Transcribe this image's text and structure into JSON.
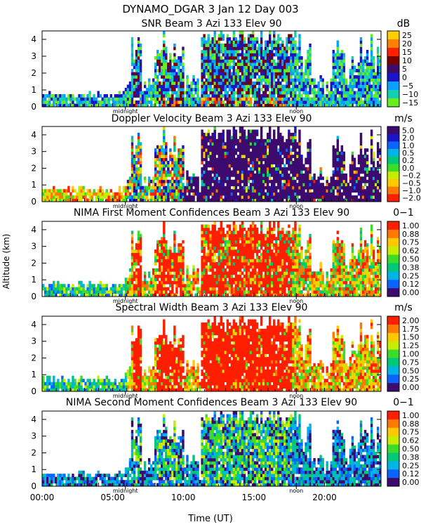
{
  "header": {
    "title": "DYNAMO_DGAR    3 Jan 12 Day 003"
  },
  "x_axis": {
    "label": "Time (UT)",
    "ticks": [
      {
        "hour": 0,
        "label": "00:00"
      },
      {
        "hour": 5,
        "label": "05:00"
      },
      {
        "hour": 10,
        "label": "10:00"
      },
      {
        "hour": 15,
        "label": "15:00"
      },
      {
        "hour": 20,
        "label": "20:00"
      }
    ],
    "range": [
      0,
      24
    ],
    "markers": [
      {
        "hour": 5.9,
        "label": "midnight"
      },
      {
        "hour": 18.0,
        "label": "noon"
      }
    ]
  },
  "y_axis": {
    "label": "Altitude (km)",
    "range": [
      0,
      4.5
    ],
    "ticks": [
      0,
      1,
      2,
      3,
      4
    ]
  },
  "chart_data": [
    {
      "type": "heatmap",
      "title": "SNR Beam 3 Azi 133 Elev 90",
      "unit": "dB",
      "colorbar": {
        "labels": [
          "25",
          "20",
          "15",
          "10",
          "5",
          "0",
          "−5",
          "−10",
          "−15"
        ],
        "colors": [
          "#ffd000",
          "#ff8000",
          "#ff2000",
          "#7a0000",
          "#3d0a6e",
          "#1a14c8",
          "#0aa0ff",
          "#12d0b0",
          "#66ee22"
        ]
      }
    },
    {
      "type": "heatmap",
      "title": "Doppler Velocity Beam 3 Azi 133 Elev 90",
      "unit": "m/s",
      "colorbar": {
        "labels": [
          "5.0",
          "2.0",
          "1.0",
          "0.5",
          "0.2",
          "0.0",
          "−0.2",
          "−0.5",
          "−1.0",
          "−2.0"
        ],
        "colors": [
          "#3d0a6e",
          "#1a14c8",
          "#0a64ff",
          "#00b4e6",
          "#00c878",
          "#3cdc28",
          "#c8ec00",
          "#ffc800",
          "#ff7800",
          "#ff1e00"
        ]
      }
    },
    {
      "type": "heatmap",
      "title": "NIMA First Moment Confidences Beam 3 Azi 133 Elev 90",
      "unit": "0−1",
      "colorbar": {
        "labels": [
          "1.00",
          "0.88",
          "0.75",
          "0.62",
          "0.50",
          "0.38",
          "0.25",
          "0.12",
          "0.00"
        ],
        "colors": [
          "#ff1e00",
          "#ff7800",
          "#ffc800",
          "#c8ec00",
          "#3cdc28",
          "#00c878",
          "#00b4e6",
          "#0a64ff",
          "#3d0a6e"
        ]
      }
    },
    {
      "type": "heatmap",
      "title": "Spectral Width Beam 3 Azi 133 Elev 90",
      "unit": "m/s",
      "colorbar": {
        "labels": [
          "2.00",
          "1.75",
          "1.50",
          "1.25",
          "1.00",
          "0.75",
          "0.50",
          "0.25",
          "0.00"
        ],
        "colors": [
          "#ff1e00",
          "#ff7800",
          "#ffc800",
          "#c8ec00",
          "#3cdc28",
          "#00c878",
          "#00b4e6",
          "#0a64ff",
          "#3d0a6e"
        ]
      }
    },
    {
      "type": "heatmap",
      "title": "NIMA Second Moment Confidences Beam 3 Azi 133 Elev 90",
      "unit": "0−1",
      "colorbar": {
        "labels": [
          "1.00",
          "0.88",
          "0.75",
          "0.62",
          "0.50",
          "0.38",
          "0.25",
          "0.12",
          "0.00"
        ],
        "colors": [
          "#ff1e00",
          "#ff7800",
          "#ffc800",
          "#c8ec00",
          "#3cdc28",
          "#00c878",
          "#00b4e6",
          "#0a64ff",
          "#3d0a6e"
        ]
      }
    }
  ]
}
